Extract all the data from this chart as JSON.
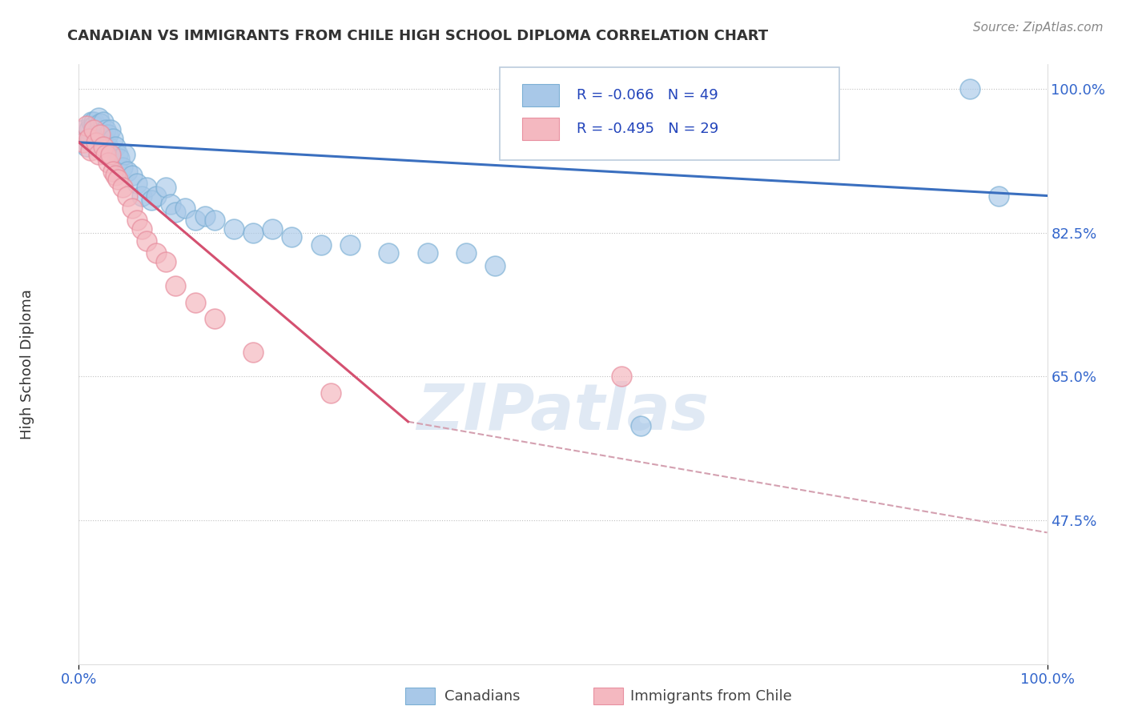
{
  "title": "CANADIAN VS IMMIGRANTS FROM CHILE HIGH SCHOOL DIPLOMA CORRELATION CHART",
  "source": "Source: ZipAtlas.com",
  "ylabel": "High School Diploma",
  "canadians_R": -0.066,
  "canadians_N": 49,
  "chile_R": -0.495,
  "chile_N": 29,
  "blue_color": "#A8C8E8",
  "blue_edge_color": "#7BAFD4",
  "pink_color": "#F4B8C0",
  "pink_edge_color": "#E890A0",
  "blue_line_color": "#3A6FBF",
  "pink_line_color": "#D45070",
  "dash_color": "#D4A0B0",
  "legend_label_1": "Canadians",
  "legend_label_2": "Immigrants from Chile",
  "blue_scatter_x": [
    0.005,
    0.008,
    0.01,
    0.012,
    0.013,
    0.015,
    0.015,
    0.018,
    0.02,
    0.022,
    0.025,
    0.025,
    0.028,
    0.03,
    0.03,
    0.033,
    0.035,
    0.038,
    0.04,
    0.042,
    0.045,
    0.048,
    0.05,
    0.055,
    0.06,
    0.065,
    0.07,
    0.075,
    0.08,
    0.09,
    0.095,
    0.1,
    0.11,
    0.12,
    0.13,
    0.14,
    0.16,
    0.18,
    0.2,
    0.22,
    0.25,
    0.28,
    0.32,
    0.36,
    0.4,
    0.43,
    0.58,
    0.92,
    0.95
  ],
  "blue_scatter_y": [
    0.95,
    0.93,
    0.95,
    0.94,
    0.96,
    0.96,
    0.955,
    0.945,
    0.965,
    0.958,
    0.94,
    0.96,
    0.95,
    0.93,
    0.945,
    0.95,
    0.94,
    0.93,
    0.92,
    0.915,
    0.905,
    0.92,
    0.9,
    0.895,
    0.885,
    0.87,
    0.88,
    0.865,
    0.87,
    0.88,
    0.86,
    0.85,
    0.855,
    0.84,
    0.845,
    0.84,
    0.83,
    0.825,
    0.83,
    0.82,
    0.81,
    0.81,
    0.8,
    0.8,
    0.8,
    0.785,
    0.59,
    1.0,
    0.87
  ],
  "pink_scatter_x": [
    0.005,
    0.008,
    0.01,
    0.012,
    0.015,
    0.018,
    0.02,
    0.022,
    0.025,
    0.028,
    0.03,
    0.033,
    0.035,
    0.038,
    0.04,
    0.045,
    0.05,
    0.055,
    0.06,
    0.065,
    0.07,
    0.08,
    0.09,
    0.1,
    0.12,
    0.14,
    0.18,
    0.26,
    0.56
  ],
  "pink_scatter_y": [
    0.935,
    0.955,
    0.94,
    0.925,
    0.95,
    0.935,
    0.92,
    0.945,
    0.93,
    0.92,
    0.91,
    0.92,
    0.9,
    0.895,
    0.89,
    0.88,
    0.87,
    0.855,
    0.84,
    0.83,
    0.815,
    0.8,
    0.79,
    0.76,
    0.74,
    0.72,
    0.68,
    0.63,
    0.65
  ],
  "blue_line_x": [
    0.0,
    1.0
  ],
  "blue_line_y": [
    0.935,
    0.87
  ],
  "pink_line_x": [
    0.0,
    0.34
  ],
  "pink_line_y": [
    0.935,
    0.595
  ],
  "dash_line_x": [
    0.34,
    1.0
  ],
  "dash_line_y": [
    0.595,
    0.46
  ],
  "ytick_positions": [
    1.0,
    0.825,
    0.65,
    0.475
  ],
  "ytick_labels": [
    "100.0%",
    "82.5%",
    "65.0%",
    "47.5%"
  ],
  "ylim": [
    0.3,
    1.03
  ],
  "xlim": [
    0.0,
    1.0
  ]
}
